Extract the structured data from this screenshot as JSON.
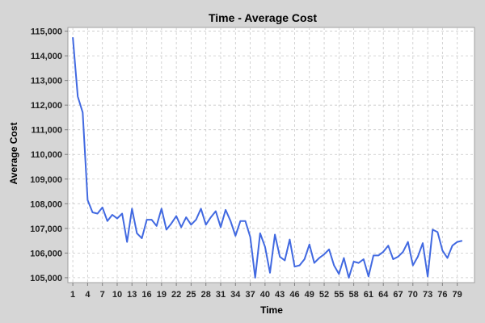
{
  "chart_data": {
    "type": "line",
    "title": "Time - Average Cost",
    "xlabel": "Time",
    "ylabel": "Average Cost",
    "ylim": [
      104800,
      115150
    ],
    "y_ticks": [
      105000,
      106000,
      107000,
      108000,
      109000,
      110000,
      111000,
      112000,
      113000,
      114000,
      115000
    ],
    "y_tick_labels": [
      "105,000",
      "106,000",
      "107,000",
      "108,000",
      "109,000",
      "110,000",
      "111,000",
      "112,000",
      "113,000",
      "114,000",
      "115,000"
    ],
    "x_tick_labels": [
      "1",
      "4",
      "7",
      "10",
      "13",
      "16",
      "19",
      "22",
      "25",
      "28",
      "31",
      "34",
      "37",
      "40",
      "43",
      "46",
      "49",
      "52",
      "55",
      "58",
      "61",
      "64",
      "67",
      "70",
      "73",
      "76",
      "79"
    ],
    "grid": true,
    "series": [
      {
        "color": "#4169e1",
        "x": [
          1,
          2,
          3,
          4,
          5,
          6,
          7,
          8,
          9,
          10,
          11,
          12,
          13,
          14,
          15,
          16,
          17,
          18,
          19,
          20,
          21,
          22,
          23,
          24,
          25,
          26,
          27,
          28,
          29,
          30,
          31,
          32,
          33,
          34,
          35,
          36,
          37,
          38,
          39,
          40,
          41,
          42,
          43,
          44,
          45,
          46,
          47,
          48,
          49,
          50,
          51,
          52,
          53,
          54,
          55,
          56,
          57,
          58,
          59,
          60,
          61,
          62,
          63,
          64,
          65,
          66,
          67,
          68,
          69,
          70,
          71,
          72,
          73,
          74,
          75,
          76,
          77,
          78,
          79,
          80
        ],
        "values": [
          114750,
          112350,
          111700,
          108150,
          107650,
          107600,
          107850,
          107300,
          107550,
          107400,
          107600,
          106450,
          107800,
          106800,
          106600,
          107350,
          107350,
          107100,
          107800,
          106950,
          107200,
          107500,
          107050,
          107450,
          107150,
          107350,
          107800,
          107150,
          107450,
          107700,
          107050,
          107750,
          107300,
          106700,
          107300,
          107300,
          106650,
          105000,
          106800,
          106250,
          105200,
          106750,
          105850,
          105700,
          106550,
          105450,
          105500,
          105750,
          106350,
          105600,
          105800,
          105950,
          106150,
          105500,
          105150,
          105800,
          105000,
          105650,
          105600,
          105750,
          105050,
          105900,
          105900,
          106050,
          106300,
          105750,
          105850,
          106050,
          106450,
          105500,
          105850,
          106400,
          105050,
          106950,
          106850,
          106100,
          105800,
          106300,
          106450,
          106500
        ]
      }
    ]
  }
}
